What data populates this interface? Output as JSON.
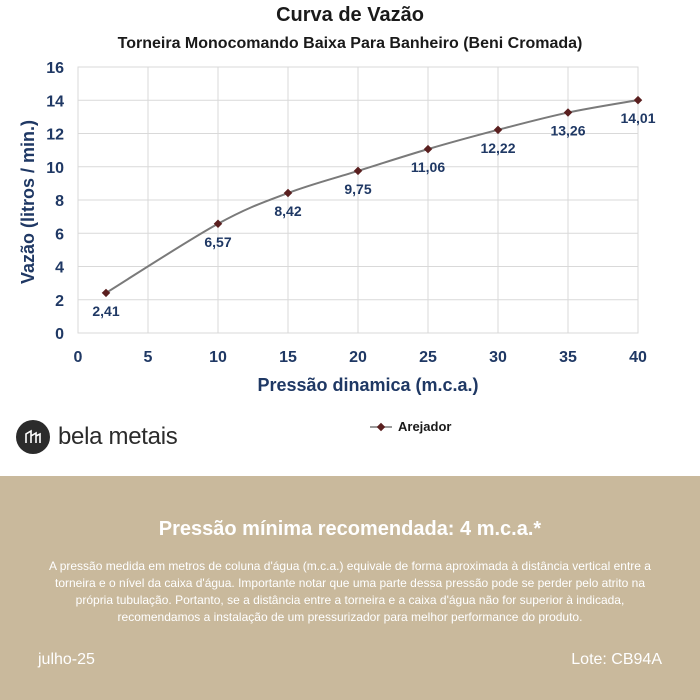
{
  "header": {
    "title": "Curva de Vazão",
    "subtitle": "Torneira Monocomando Baixa Para Banheiro (Beni Cromada)"
  },
  "brand": {
    "name": "bela metais",
    "logo_icon": "building-icon"
  },
  "chart_data": {
    "type": "line",
    "xlabel": "Pressão dinamica (m.c.a.)",
    "ylabel": "Vazão (litros / min.)",
    "xlim": [
      0,
      40
    ],
    "ylim": [
      0,
      16
    ],
    "xticks": [
      0,
      5,
      10,
      15,
      20,
      25,
      30,
      35,
      40
    ],
    "yticks": [
      0,
      2,
      4,
      6,
      8,
      10,
      12,
      14,
      16
    ],
    "grid": true,
    "legend_position": "bottom",
    "series": [
      {
        "name": "Arejador",
        "color": "#7a7a7a",
        "marker_color": "#5a1f1f",
        "x": [
          2,
          10,
          15,
          20,
          25,
          30,
          35,
          40
        ],
        "y": [
          2.41,
          6.57,
          8.42,
          9.75,
          11.06,
          12.22,
          13.26,
          14.01
        ],
        "labels": [
          "2,41",
          "6,57",
          "8,42",
          "9,75",
          "11,06",
          "12,22",
          "13,26",
          "14,01"
        ]
      }
    ]
  },
  "info": {
    "min_pressure": "Pressão mínima recomendada: 4 m.c.a.*",
    "note": "A pressão medida em metros de coluna d'água (m.c.a.) equivale de forma aproximada à distância vertical entre a torneira e o nível da caixa d'água. Importante notar que uma parte dessa pressão pode se perder pelo atrito na própria tubulação. Portanto, se a distância entre a torneira e a caixa d'água não for superior à indicada, recomendamos a instalação de um pressurizador para melhor performance do produto.",
    "date": "julho-25",
    "lot": "Lote: CB94A"
  },
  "colors": {
    "axis_text": "#1f3864",
    "footer_bg": "#c9b99c",
    "line": "#7a7a7a",
    "marker": "#5a1f1f"
  }
}
